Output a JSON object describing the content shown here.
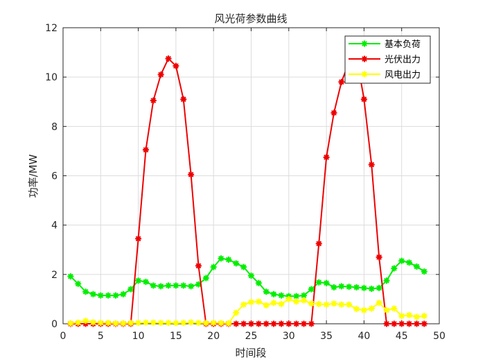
{
  "chart_data": {
    "type": "line",
    "title": "风光荷参数曲线",
    "xlabel": "时间段",
    "ylabel": "功率/MW",
    "xlim": [
      0,
      50
    ],
    "ylim": [
      0,
      12
    ],
    "xticks": [
      0,
      5,
      10,
      15,
      20,
      25,
      30,
      35,
      40,
      45,
      50
    ],
    "yticks": [
      0,
      2,
      4,
      6,
      8,
      10,
      12
    ],
    "grid": true,
    "legend_position": "top-right",
    "marker": "asterisk",
    "x": [
      1,
      2,
      3,
      4,
      5,
      6,
      7,
      8,
      9,
      10,
      11,
      12,
      13,
      14,
      15,
      16,
      17,
      18,
      19,
      20,
      21,
      22,
      23,
      24,
      25,
      26,
      27,
      28,
      29,
      30,
      31,
      32,
      33,
      34,
      35,
      36,
      37,
      38,
      39,
      40,
      41,
      42,
      43,
      44,
      45,
      46,
      47,
      48
    ],
    "series": [
      {
        "name": "基本负荷",
        "color": "#00ee00",
        "values": [
          1.92,
          1.62,
          1.3,
          1.2,
          1.15,
          1.15,
          1.15,
          1.2,
          1.4,
          1.75,
          1.7,
          1.55,
          1.52,
          1.55,
          1.55,
          1.55,
          1.52,
          1.6,
          1.85,
          2.3,
          2.65,
          2.6,
          2.45,
          2.3,
          1.95,
          1.65,
          1.3,
          1.2,
          1.15,
          1.12,
          1.12,
          1.15,
          1.4,
          1.68,
          1.65,
          1.48,
          1.52,
          1.5,
          1.48,
          1.45,
          1.42,
          1.45,
          1.75,
          2.25,
          2.55,
          2.48,
          2.32,
          2.12
        ]
      },
      {
        "name": "光伏出力",
        "color": "#ee0000",
        "values": [
          0,
          0,
          0,
          0,
          0,
          0,
          0,
          0,
          0,
          3.45,
          7.05,
          9.05,
          10.1,
          10.75,
          10.45,
          9.1,
          6.05,
          2.35,
          0,
          0,
          0,
          0,
          0,
          0,
          0,
          0,
          0,
          0,
          0,
          0,
          0,
          0,
          0,
          3.25,
          6.75,
          8.55,
          9.8,
          10.6,
          10.85,
          9.1,
          6.45,
          2.7,
          0,
          0,
          0,
          0,
          0,
          0
        ]
      },
      {
        "name": "风电出力",
        "color": "#ffff00",
        "values": [
          0.02,
          0.05,
          0.12,
          0.06,
          0.04,
          0.04,
          0.02,
          0.02,
          0.03,
          0.04,
          0.05,
          0.05,
          0.04,
          0.04,
          0.03,
          0.04,
          0.06,
          0.04,
          0.03,
          0.04,
          0.03,
          0.02,
          0.45,
          0.78,
          0.88,
          0.9,
          0.75,
          0.85,
          0.8,
          1.0,
          0.9,
          0.95,
          0.82,
          0.8,
          0.78,
          0.82,
          0.78,
          0.78,
          0.6,
          0.55,
          0.62,
          0.85,
          0.55,
          0.62,
          0.32,
          0.35,
          0.28,
          0.32
        ]
      }
    ]
  }
}
